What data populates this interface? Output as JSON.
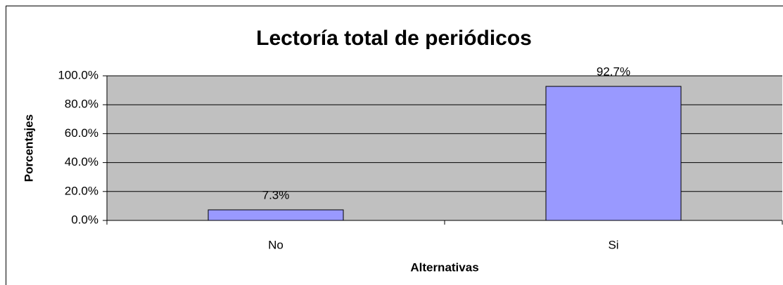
{
  "chart_data": {
    "type": "bar",
    "title": "Lectoría total de periódicos",
    "x_label": "Alternativas",
    "y_label": "Porcentajes",
    "categories": [
      "No",
      "Si"
    ],
    "values": [
      7.3,
      92.7
    ],
    "value_labels": [
      "7.3%",
      "92.7%"
    ],
    "color": "#9999ff",
    "ylim": [
      0,
      100
    ],
    "yticks": [
      {
        "value": 0,
        "label": "0.0%"
      },
      {
        "value": 20,
        "label": "20.0%"
      },
      {
        "value": 40,
        "label": "40.0%"
      },
      {
        "value": 60,
        "label": "60.0%"
      },
      {
        "value": 80,
        "label": "80.0%"
      },
      {
        "value": 100,
        "label": "100.0%"
      }
    ],
    "grid": true
  }
}
